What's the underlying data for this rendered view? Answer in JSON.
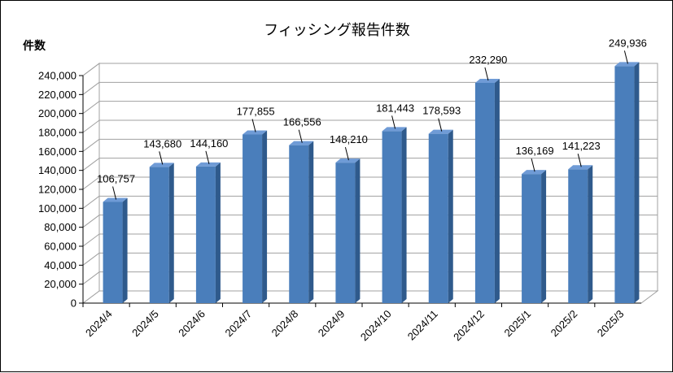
{
  "chart_data": {
    "type": "bar",
    "title": "フィッシング報告件数",
    "ylabel": "件数",
    "xlabel": "",
    "categories": [
      "2024/4",
      "2024/5",
      "2024/6",
      "2024/7",
      "2024/8",
      "2024/9",
      "2024/10",
      "2024/11",
      "2024/12",
      "2025/1",
      "2025/2",
      "2025/3"
    ],
    "values": [
      106757,
      143680,
      144160,
      177855,
      166556,
      148210,
      181443,
      178593,
      232290,
      136169,
      141223,
      249936
    ],
    "value_labels": [
      "106,757",
      "143,680",
      "144,160",
      "177,855",
      "166,556",
      "148,210",
      "181,443",
      "178,593",
      "232,290",
      "136,169",
      "141,223",
      "249,936"
    ],
    "yticks": [
      "0",
      "20,000",
      "40,000",
      "60,000",
      "80,000",
      "100,000",
      "120,000",
      "140,000",
      "160,000",
      "180,000",
      "200,000",
      "220,000",
      "240,000"
    ],
    "ylim": [
      0,
      240000
    ],
    "grid": true,
    "style": "3d-column",
    "colors": {
      "bar_front": "#4a7ebb",
      "bar_side": "#2f5a8c",
      "bar_top": "#6f9bd6",
      "grid": "#a0a0a0",
      "wall": "#ffffff"
    }
  }
}
